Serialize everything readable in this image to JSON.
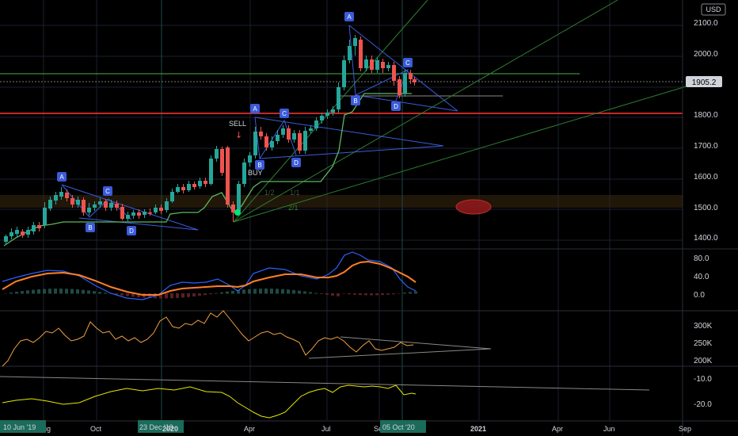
{
  "currency": "USD",
  "price_axis": {
    "ticks": [
      "2100.0",
      "2000.0",
      "1800.0",
      "1700.0",
      "1600.0",
      "1500.0",
      "1400.0"
    ],
    "last_price": "1905.2"
  },
  "macd_axis": {
    "ticks": [
      "80.0",
      "40.0",
      "0.0"
    ]
  },
  "volume_axis": {
    "ticks": [
      "300K",
      "250K",
      "200K"
    ]
  },
  "osc_axis": {
    "ticks": [
      "-10.0",
      "-20.0"
    ]
  },
  "time_axis": {
    "labels": [
      "Aug",
      "Oct",
      "Apr",
      "Jul",
      "Sep",
      "2021",
      "Apr",
      "Jun",
      "Sep"
    ],
    "highlights": [
      "10 Jun '19",
      "23 Dec '19",
      "2020",
      "05 Oct '20"
    ]
  },
  "annotations": {
    "sell": "SELL",
    "buy": "BUY",
    "fib_1_2": "1/2",
    "fib_1_1": "1/1",
    "fib_2_1": "2/1"
  },
  "pattern_labels": {
    "a": "A",
    "b": "B",
    "c": "C",
    "d": "D"
  },
  "colors": {
    "up": "#26a69a",
    "down": "#ef5350",
    "stop_line": "#5cb85c",
    "macd": "#2962ff",
    "signal": "#ff7f27",
    "volume_line": "#f0a040",
    "osc_line": "#e6e600",
    "pattern": "#3b5bdb",
    "resistance": "#c62828"
  }
}
